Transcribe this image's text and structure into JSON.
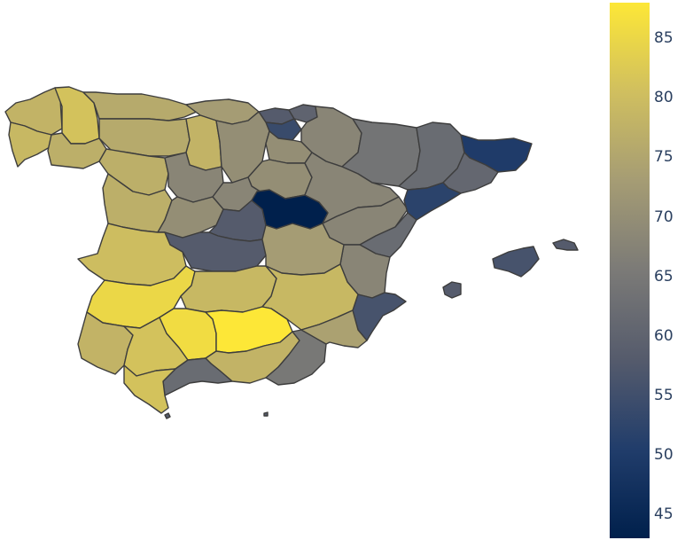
{
  "colorscale": {
    "name": "cividis",
    "min": 43,
    "max": 88,
    "ticks": [
      "45",
      "50",
      "55",
      "60",
      "65",
      "70",
      "75",
      "80",
      "85"
    ],
    "tick_values": [
      45,
      50,
      55,
      60,
      65,
      70,
      75,
      80,
      85
    ],
    "stops": [
      "#00204c",
      "#213d6b",
      "#555b6c",
      "#7b7a77",
      "#a59c74",
      "#d0bf5f",
      "#fde737"
    ]
  },
  "regions": [
    {
      "id": "a-coruna",
      "value": 78
    },
    {
      "id": "lugo",
      "value": 81
    },
    {
      "id": "pontevedra",
      "value": 79
    },
    {
      "id": "ourense",
      "value": 77
    },
    {
      "id": "asturias",
      "value": 76
    },
    {
      "id": "cantabria",
      "value": 73
    },
    {
      "id": "bizkaia",
      "value": 58
    },
    {
      "id": "gipuzkoa",
      "value": 60
    },
    {
      "id": "araba",
      "value": 54
    },
    {
      "id": "navarra",
      "value": 68
    },
    {
      "id": "leon",
      "value": 76
    },
    {
      "id": "palencia",
      "value": 78
    },
    {
      "id": "burgos",
      "value": 70
    },
    {
      "id": "la-rioja",
      "value": 70
    },
    {
      "id": "zamora",
      "value": 77
    },
    {
      "id": "valladolid",
      "value": 68
    },
    {
      "id": "soria",
      "value": 70
    },
    {
      "id": "salamanca",
      "value": 77
    },
    {
      "id": "segovia",
      "value": 68
    },
    {
      "id": "avila",
      "value": 70
    },
    {
      "id": "madrid",
      "value": 58
    },
    {
      "id": "guadalajara",
      "value": 43
    },
    {
      "id": "huesca",
      "value": 64
    },
    {
      "id": "zaragoza",
      "value": 68
    },
    {
      "id": "teruel",
      "value": 68
    },
    {
      "id": "lleida",
      "value": 62
    },
    {
      "id": "girona",
      "value": 50
    },
    {
      "id": "barcelona",
      "value": 61
    },
    {
      "id": "tarragona",
      "value": 52
    },
    {
      "id": "castellon",
      "value": 62
    },
    {
      "id": "valencia",
      "value": 68
    },
    {
      "id": "alicante",
      "value": 56
    },
    {
      "id": "caceres",
      "value": 80
    },
    {
      "id": "badajoz",
      "value": 85
    },
    {
      "id": "toledo",
      "value": 58
    },
    {
      "id": "cuenca",
      "value": 73
    },
    {
      "id": "ciudad-real",
      "value": 79
    },
    {
      "id": "albacete",
      "value": 79
    },
    {
      "id": "huelva",
      "value": 78
    },
    {
      "id": "sevilla",
      "value": 81
    },
    {
      "id": "cordoba",
      "value": 86
    },
    {
      "id": "jaen",
      "value": 88
    },
    {
      "id": "granada",
      "value": 78
    },
    {
      "id": "almeria",
      "value": 65
    },
    {
      "id": "murcia",
      "value": 74
    },
    {
      "id": "malaga",
      "value": 62
    },
    {
      "id": "cadiz",
      "value": 81
    },
    {
      "id": "mallorca",
      "value": 56
    },
    {
      "id": "menorca",
      "value": 58
    },
    {
      "id": "ibiza",
      "value": 58
    }
  ]
}
